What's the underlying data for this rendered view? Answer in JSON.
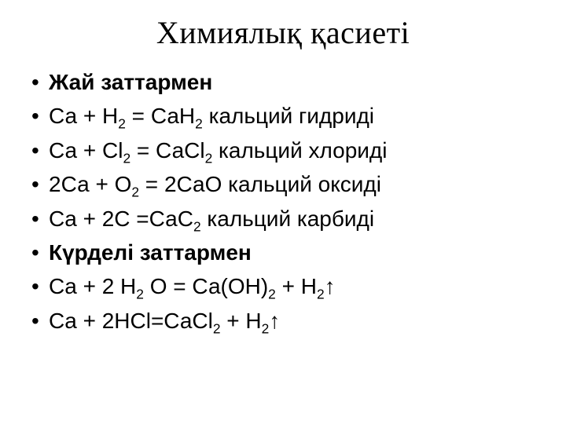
{
  "title": "Химиялық қасиеті",
  "items": [
    {
      "html": "Жай заттармен",
      "bold": true
    },
    {
      "html": "Са + Н<sub>2</sub> = СаН<sub>2</sub>  кальций гидриді",
      "bold": false
    },
    {
      "html": "Са + Сl<sub>2</sub> = СаСl<sub>2</sub>  кальций хлориді",
      "bold": false
    },
    {
      "html": "2Са + О<sub>2</sub> = 2СаО  кальций оксиді",
      "bold": false
    },
    {
      "html": "Ca + 2C =СаС<sub>2</sub>  кальций карбиді",
      "bold": false
    },
    {
      "html": "Күрделі заттармен",
      "bold": true
    },
    {
      "html": "Ca + 2 Н<sub>2</sub> О = Са(ОН)<sub>2</sub> + Н<sub>2</sub>↑",
      "bold": false
    },
    {
      "html": "Ca + 2HCl=СаСl<sub>2</sub> + Н<sub>2</sub>↑",
      "bold": false
    }
  ],
  "colors": {
    "background": "#ffffff",
    "text": "#000000"
  },
  "typography": {
    "title_font": "Times New Roman",
    "title_size_pt": 30,
    "body_font": "Arial",
    "body_size_pt": 21
  }
}
